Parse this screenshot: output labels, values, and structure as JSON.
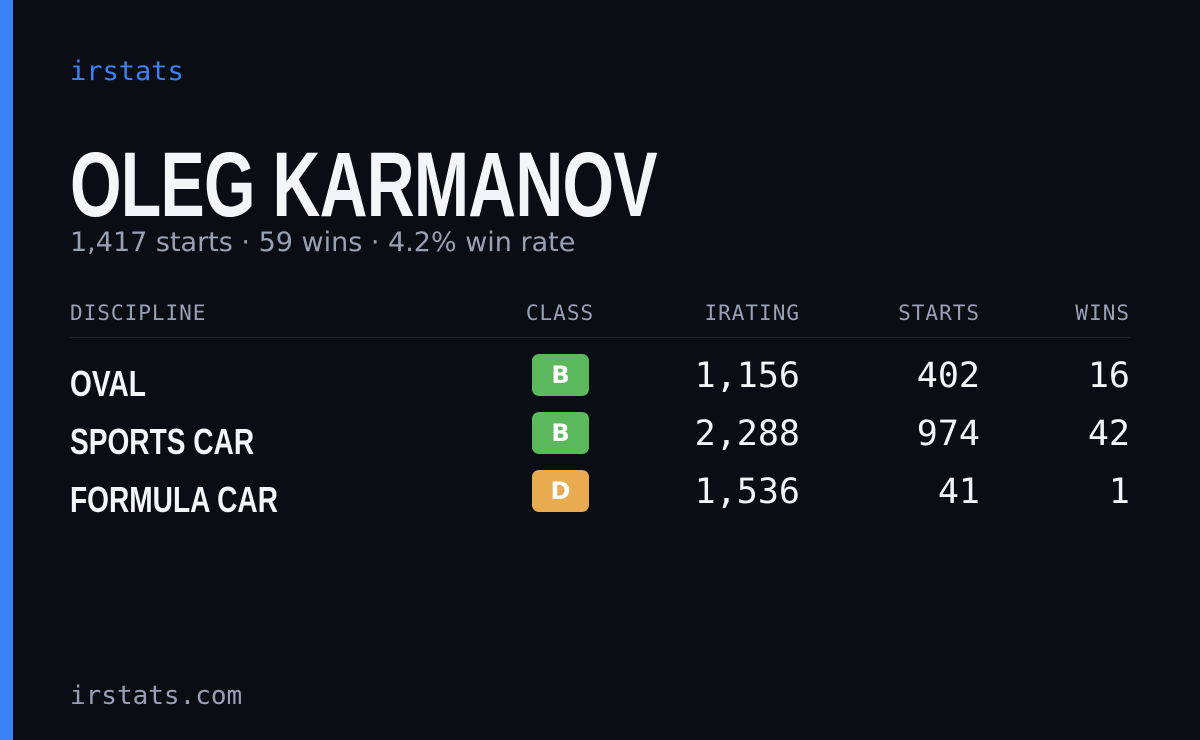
{
  "brand": "irstats",
  "name": "OLEG KARMANOV",
  "summary": "1,417 starts · 59 wins · 4.2% win rate",
  "table": {
    "headers": [
      "DISCIPLINE",
      "CLASS",
      "IRATING",
      "STARTS",
      "WINS"
    ],
    "rows": [
      {
        "discipline": "OVAL",
        "class": "B",
        "class_color": "#5cb85c",
        "irating": "1,156",
        "starts": "402",
        "wins": "16"
      },
      {
        "discipline": "SPORTS CAR",
        "class": "B",
        "class_color": "#5cb85c",
        "irating": "2,288",
        "starts": "974",
        "wins": "42"
      },
      {
        "discipline": "FORMULA CAR",
        "class": "D",
        "class_color": "#e8ab4f",
        "irating": "1,536",
        "starts": "41",
        "wins": "1"
      }
    ]
  },
  "footer": "irstats.com"
}
